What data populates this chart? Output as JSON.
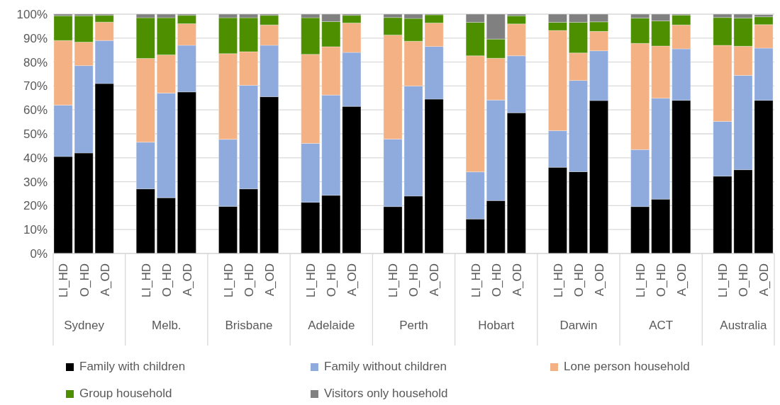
{
  "chart_data": {
    "type": "bar",
    "stacked": true,
    "grid": "y",
    "legend": "bottom",
    "categories": [
      "LI_HD",
      "O_HD",
      "A_OD",
      null,
      "LI_HD",
      "O_HD",
      "A_OD",
      null,
      "LI_HD",
      "O_HD",
      "A_OD",
      null,
      "LI_HD",
      "O_HD",
      "A_OD",
      null,
      "LI_HD",
      "O_HD",
      "A_OD",
      null,
      "LI_HD",
      "O_HD",
      "A_OD",
      null,
      "LI_HD",
      "O_HD",
      "A_OD",
      null,
      "LI_HD",
      "O_HD",
      "A_OD",
      null,
      "LI_HD",
      "O_HD",
      "A_OD"
    ],
    "annotations": [
      "Sydney",
      "Melb.",
      "Brisbane",
      "Adelaide",
      "Perth",
      "Hobart",
      "Darwin",
      "ACT",
      "Australia"
    ],
    "ylim": [
      0,
      100
    ],
    "yticks": [
      {
        "value": 0,
        "label": "0%"
      },
      {
        "value": 10,
        "label": "10%"
      },
      {
        "value": 20,
        "label": "20%"
      },
      {
        "value": 30,
        "label": "30%"
      },
      {
        "value": 40,
        "label": "40%"
      },
      {
        "value": 50,
        "label": "50%"
      },
      {
        "value": 60,
        "label": "60%"
      },
      {
        "value": 70,
        "label": "70%"
      },
      {
        "value": 80,
        "label": "80%"
      },
      {
        "value": 90,
        "label": "90%"
      },
      {
        "value": 100,
        "label": "100%"
      }
    ],
    "series": [
      {
        "name": "Family with children",
        "color": "#000000",
        "values": [
          40.5,
          42,
          71,
          null,
          27,
          23.3,
          67.5,
          null,
          19.7,
          27,
          65.5,
          null,
          21.4,
          24.3,
          61.5,
          null,
          19.6,
          24,
          64.5,
          null,
          14.4,
          22.1,
          58.8,
          null,
          36,
          34.2,
          63.9,
          null,
          19.6,
          22.7,
          64,
          null,
          32.3,
          35,
          64
        ]
      },
      {
        "name": "Family without children",
        "color": "#8faadc",
        "values": [
          21.5,
          36.5,
          18,
          null,
          19.5,
          43.7,
          19.5,
          null,
          28,
          43.3,
          21.5,
          null,
          24.6,
          41.9,
          22.5,
          null,
          28.2,
          46,
          22,
          null,
          19.7,
          42,
          23.8,
          null,
          15.3,
          38.1,
          20.8,
          null,
          23.8,
          42.2,
          21.5,
          null,
          22.9,
          39.4,
          21.8
        ]
      },
      {
        "name": "Lone person household",
        "color": "#f4b183",
        "values": [
          27,
          9.8,
          7.7,
          null,
          35,
          16,
          9,
          null,
          35.8,
          14,
          8.5,
          null,
          37.2,
          20.2,
          12.3,
          null,
          43.5,
          18.7,
          9.8,
          null,
          48.5,
          17.5,
          13.3,
          null,
          41.9,
          11.5,
          8.1,
          null,
          44.4,
          21.8,
          10,
          null,
          31.8,
          12.2,
          9.8
        ]
      },
      {
        "name": "Group household",
        "color": "#4e8f00",
        "values": [
          10.3,
          11,
          2.8,
          null,
          17,
          15.5,
          3.5,
          null,
          15,
          14.2,
          4,
          null,
          15.3,
          10.5,
          3.2,
          null,
          7.3,
          9.5,
          3.4,
          null,
          14,
          8,
          3.4,
          null,
          3.4,
          12.8,
          4,
          null,
          10.6,
          10.5,
          4.1,
          null,
          11.6,
          11.8,
          3.3
        ]
      },
      {
        "name": "Visitors only household",
        "color": "#808080",
        "values": [
          0.7,
          0.7,
          0.5,
          null,
          1.5,
          1.5,
          0.5,
          null,
          1.5,
          1.5,
          0.5,
          null,
          1.5,
          3.1,
          0.5,
          null,
          1.4,
          1.8,
          0.3,
          null,
          3.4,
          10.4,
          0.7,
          null,
          3.4,
          3.4,
          3.2,
          null,
          1.6,
          2.8,
          0.4,
          null,
          1.4,
          1.6,
          0.9
        ]
      }
    ]
  }
}
